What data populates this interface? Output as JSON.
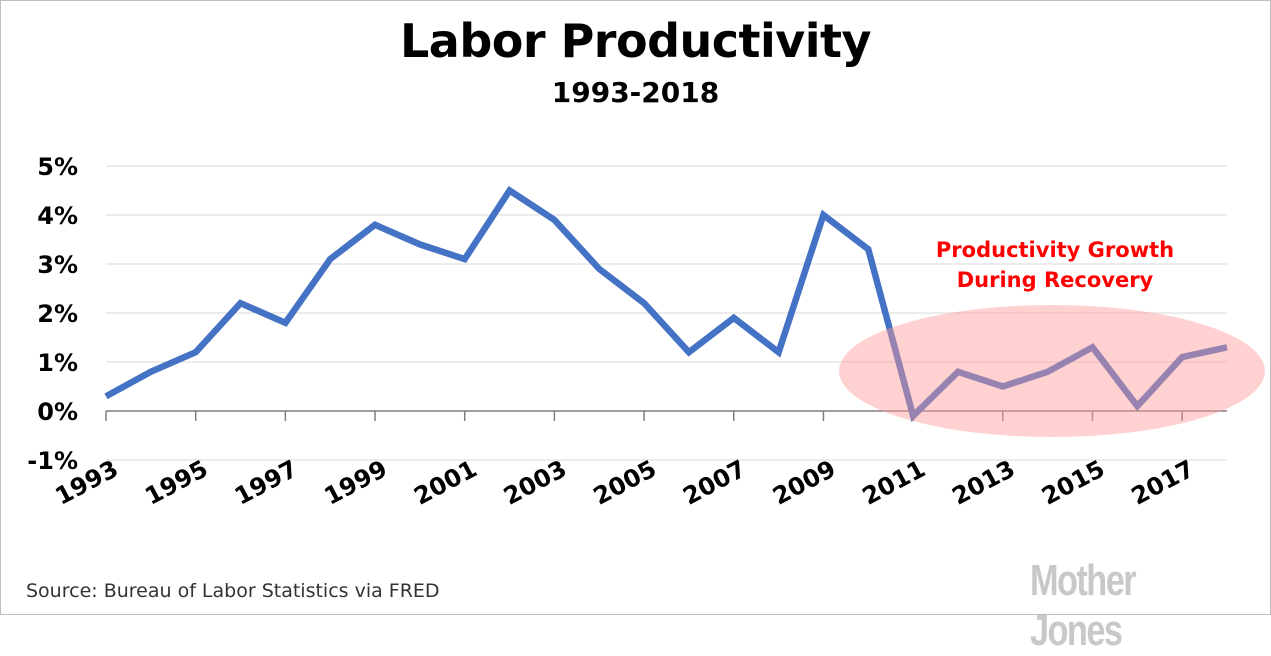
{
  "title": "Labor Productivity",
  "subtitle": "1993-2018",
  "source": "Source: Bureau of Labor Statistics via FRED",
  "brand": "Mother Jones",
  "colors": {
    "line": "#4472c4",
    "highlight": "#ff9999",
    "annotation": "#ff0000",
    "grid": "#d9d9d9"
  },
  "chart_data": {
    "type": "line",
    "title": "Labor Productivity",
    "subtitle": "1993-2018",
    "xlabel": "",
    "ylabel": "",
    "ylim": [
      -1,
      5
    ],
    "yticks": [
      -1,
      0,
      1,
      2,
      3,
      4,
      5
    ],
    "ytick_labels": [
      "-1%",
      "0%",
      "1%",
      "2%",
      "3%",
      "4%",
      "5%"
    ],
    "xtick_labels": [
      "1993",
      "1995",
      "1997",
      "1999",
      "2001",
      "2003",
      "2005",
      "2007",
      "2009",
      "2011",
      "2013",
      "2015",
      "2017"
    ],
    "grid": true,
    "legend": "none",
    "series": [
      {
        "x": [
          1993,
          1994,
          1995,
          1996,
          1997,
          1998,
          1999,
          2000,
          2001,
          2002,
          2003,
          2004,
          2005,
          2006,
          2007,
          2008,
          2009,
          2010,
          2011,
          2012,
          2013,
          2014,
          2015,
          2016,
          2017,
          2018
        ],
        "values": [
          0.3,
          0.8,
          1.2,
          2.2,
          1.8,
          3.1,
          3.8,
          3.4,
          3.1,
          4.5,
          3.9,
          2.9,
          2.2,
          1.2,
          1.9,
          1.2,
          4.0,
          3.3,
          -0.1,
          0.8,
          0.5,
          0.8,
          1.3,
          0.1,
          1.1,
          1.3
        ]
      }
    ],
    "annotations": [
      {
        "text_line1": "Productivity Growth",
        "text_line2": "During Recovery"
      }
    ]
  }
}
